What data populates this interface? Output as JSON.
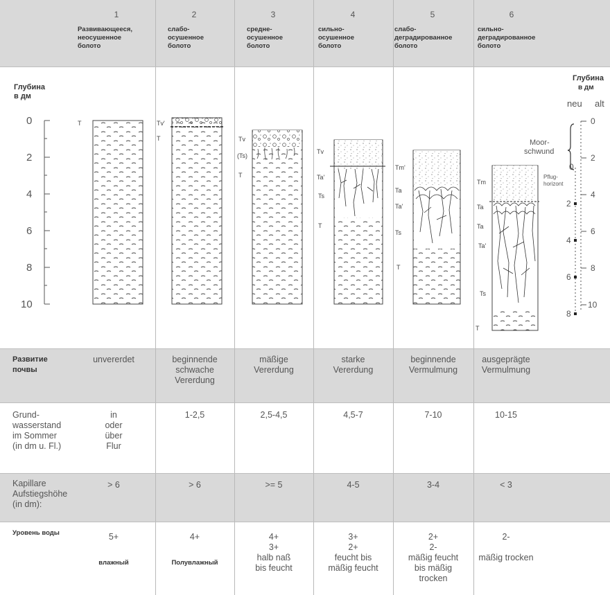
{
  "columns": [
    {
      "number": "1",
      "name": "Развивающееся,\nнеосушенное\nболото"
    },
    {
      "number": "2",
      "name": "слабо-\nосушенное\nболото"
    },
    {
      "number": "3",
      "name": "средне-\nосушенное\nболото"
    },
    {
      "number": "4",
      "name": "сильно-\nосушенное\nболото"
    },
    {
      "number": "5",
      "name": "слабо-\nдеградированное\nболото"
    },
    {
      "number": "6",
      "name": "сильно-\nдеградированное\nболото"
    }
  ],
  "diagram": {
    "depth_label": "Глубина\nв дм",
    "depth_ticks": [
      "0",
      "2",
      "4",
      "6",
      "8",
      "10"
    ],
    "right_depth_label": "Глубина\nв дм",
    "right_neu": "neu",
    "right_alt": "alt",
    "alt_ticks": [
      "0",
      "2",
      "4",
      "6",
      "8",
      "10"
    ],
    "neu_ticks": [
      "0",
      "2",
      "4",
      "6",
      "8"
    ],
    "moorschwund": "Moor-\nschwund",
    "pflughorizont": "Pflug-\nhorizont",
    "profiles": [
      {
        "labels": [
          "T"
        ]
      },
      {
        "labels": [
          "Tv'",
          "T"
        ]
      },
      {
        "labels": [
          "Tv",
          "(Ts)",
          "T"
        ]
      },
      {
        "labels": [
          "Tv",
          "Ta'",
          "Ts",
          "T"
        ]
      },
      {
        "labels": [
          "Tm'",
          "Ta",
          "Ta'",
          "Ts",
          "T"
        ]
      },
      {
        "labels": [
          "Tm",
          "Ta",
          "Ta",
          "Ta'",
          "Ts",
          "T"
        ]
      }
    ]
  },
  "rows": {
    "development": {
      "label": "Развитие\nпочвы",
      "values": [
        "unvererdet",
        "beginnende\nschwache\nVererdung",
        "mäßige\nVererdung",
        "starke\nVererdung",
        "beginnende\nVermulmung",
        "ausgeprägte\nVermulmung"
      ]
    },
    "groundwater": {
      "label": "Grund-\nwasserstand\nim Sommer\n(in dm u. Fl.)",
      "values": [
        "in\noder\nüber\nFlur",
        "1-2,5",
        "2,5-4,5",
        "4,5-7",
        "7-10",
        "10-15"
      ]
    },
    "capillary": {
      "label": "Kapillare\nAufstiegshöhe\n(in dm):",
      "values": [
        "> 6",
        "> 6",
        ">= 5",
        "4-5",
        "3-4",
        "< 3"
      ]
    },
    "water_level": {
      "label": "Уровень воды",
      "values": [
        "5+",
        "4+",
        "4+\n3+\nhalb naß\nbis feucht",
        "3+\n2+\nfeucht bis\nmäßig feucht",
        "2+\n2-\nmäßig feucht\nbis mäßig\ntrocken",
        "2-\n\nmäßig trocken"
      ],
      "moisture": [
        "влажный",
        "Полувлажный"
      ]
    }
  }
}
